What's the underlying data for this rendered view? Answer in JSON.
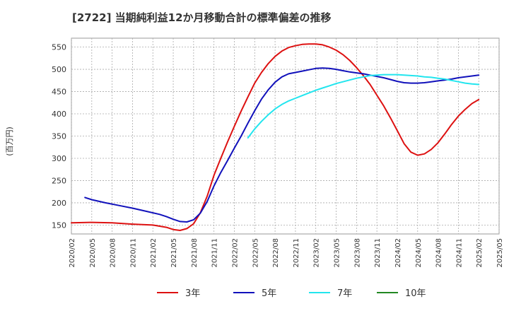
{
  "chart_data": {
    "type": "line",
    "title": "[2722]  当期純利益12か月移動合計の標準偏差の推移",
    "ylabel": "(百万円)",
    "ylim": [
      130,
      570
    ],
    "yticks": [
      150,
      200,
      250,
      300,
      350,
      400,
      450,
      500,
      550
    ],
    "xticks": [
      "2020/02",
      "2020/05",
      "2020/08",
      "2020/11",
      "2021/02",
      "2021/05",
      "2021/08",
      "2021/11",
      "2022/02",
      "2022/05",
      "2022/08",
      "2022/11",
      "2023/02",
      "2023/05",
      "2023/08",
      "2023/11",
      "2024/02",
      "2024/05",
      "2024/08",
      "2024/11",
      "2025/02",
      "2025/05"
    ],
    "grid": true,
    "legend_position": "bottom",
    "series": [
      {
        "name": "3年",
        "color": "#dd1111",
        "points": [
          [
            "2020/02",
            155
          ],
          [
            "2020/05",
            156
          ],
          [
            "2020/08",
            155
          ],
          [
            "2020/11",
            152
          ],
          [
            "2021/02",
            150
          ],
          [
            "2021/04",
            145
          ],
          [
            "2021/05",
            140
          ],
          [
            "2021/06",
            138
          ],
          [
            "2021/07",
            142
          ],
          [
            "2021/08",
            153
          ],
          [
            "2021/09",
            178
          ],
          [
            "2021/10",
            215
          ],
          [
            "2021/11",
            262
          ],
          [
            "2021/12",
            300
          ],
          [
            "2022/01",
            337
          ],
          [
            "2022/02",
            372
          ],
          [
            "2022/03",
            406
          ],
          [
            "2022/04",
            438
          ],
          [
            "2022/05",
            469
          ],
          [
            "2022/06",
            493
          ],
          [
            "2022/07",
            513
          ],
          [
            "2022/08",
            529
          ],
          [
            "2022/09",
            541
          ],
          [
            "2022/10",
            549
          ],
          [
            "2022/11",
            553
          ],
          [
            "2022/12",
            556
          ],
          [
            "2023/01",
            557
          ],
          [
            "2023/02",
            557
          ],
          [
            "2023/03",
            555
          ],
          [
            "2023/04",
            550
          ],
          [
            "2023/05",
            543
          ],
          [
            "2023/06",
            533
          ],
          [
            "2023/07",
            520
          ],
          [
            "2023/08",
            504
          ],
          [
            "2023/09",
            486
          ],
          [
            "2023/10",
            466
          ],
          [
            "2023/11",
            442
          ],
          [
            "2023/12",
            418
          ],
          [
            "2024/01",
            391
          ],
          [
            "2024/02",
            362
          ],
          [
            "2024/03",
            333
          ],
          [
            "2024/04",
            314
          ],
          [
            "2024/05",
            307
          ],
          [
            "2024/06",
            310
          ],
          [
            "2024/07",
            320
          ],
          [
            "2024/08",
            335
          ],
          [
            "2024/09",
            355
          ],
          [
            "2024/10",
            376
          ],
          [
            "2024/11",
            395
          ],
          [
            "2024/12",
            410
          ],
          [
            "2025/01",
            423
          ],
          [
            "2025/02",
            432
          ]
        ]
      },
      {
        "name": "5年",
        "color": "#1111bb",
        "points": [
          [
            "2020/04",
            212
          ],
          [
            "2020/05",
            207
          ],
          [
            "2020/07",
            200
          ],
          [
            "2020/09",
            194
          ],
          [
            "2020/11",
            188
          ],
          [
            "2021/01",
            181
          ],
          [
            "2021/03",
            174
          ],
          [
            "2021/04",
            169
          ],
          [
            "2021/05",
            163
          ],
          [
            "2021/06",
            158
          ],
          [
            "2021/07",
            157
          ],
          [
            "2021/08",
            162
          ],
          [
            "2021/09",
            177
          ],
          [
            "2021/10",
            203
          ],
          [
            "2021/11",
            238
          ],
          [
            "2021/12",
            268
          ],
          [
            "2022/01",
            295
          ],
          [
            "2022/02",
            323
          ],
          [
            "2022/03",
            350
          ],
          [
            "2022/04",
            379
          ],
          [
            "2022/05",
            407
          ],
          [
            "2022/06",
            433
          ],
          [
            "2022/07",
            454
          ],
          [
            "2022/08",
            471
          ],
          [
            "2022/09",
            483
          ],
          [
            "2022/10",
            490
          ],
          [
            "2022/11",
            493
          ],
          [
            "2022/12",
            496
          ],
          [
            "2023/01",
            499
          ],
          [
            "2023/02",
            502
          ],
          [
            "2023/03",
            503
          ],
          [
            "2023/04",
            502
          ],
          [
            "2023/05",
            500
          ],
          [
            "2023/06",
            497
          ],
          [
            "2023/07",
            494
          ],
          [
            "2023/08",
            492
          ],
          [
            "2023/09",
            490
          ],
          [
            "2023/10",
            487
          ],
          [
            "2023/11",
            484
          ],
          [
            "2023/12",
            481
          ],
          [
            "2024/01",
            477
          ],
          [
            "2024/02",
            473
          ],
          [
            "2024/03",
            470
          ],
          [
            "2024/04",
            469
          ],
          [
            "2024/05",
            469
          ],
          [
            "2024/06",
            470
          ],
          [
            "2024/07",
            472
          ],
          [
            "2024/08",
            474
          ],
          [
            "2024/09",
            476
          ],
          [
            "2024/10",
            478
          ],
          [
            "2024/11",
            481
          ],
          [
            "2024/12",
            483
          ],
          [
            "2025/01",
            485
          ],
          [
            "2025/02",
            487
          ]
        ]
      },
      {
        "name": "7年",
        "color": "#22e5ee",
        "points": [
          [
            "2022/04",
            346
          ],
          [
            "2022/05",
            366
          ],
          [
            "2022/06",
            383
          ],
          [
            "2022/07",
            398
          ],
          [
            "2022/08",
            411
          ],
          [
            "2022/09",
            421
          ],
          [
            "2022/10",
            429
          ],
          [
            "2022/11",
            435
          ],
          [
            "2022/12",
            441
          ],
          [
            "2023/01",
            447
          ],
          [
            "2023/02",
            453
          ],
          [
            "2023/03",
            458
          ],
          [
            "2023/04",
            463
          ],
          [
            "2023/05",
            468
          ],
          [
            "2023/06",
            472
          ],
          [
            "2023/07",
            476
          ],
          [
            "2023/08",
            480
          ],
          [
            "2023/09",
            483
          ],
          [
            "2023/10",
            486
          ],
          [
            "2023/11",
            487
          ],
          [
            "2023/12",
            488
          ],
          [
            "2024/01",
            488
          ],
          [
            "2024/02",
            488
          ],
          [
            "2024/03",
            487
          ],
          [
            "2024/04",
            486
          ],
          [
            "2024/05",
            485
          ],
          [
            "2024/06",
            483
          ],
          [
            "2024/07",
            482
          ],
          [
            "2024/08",
            480
          ],
          [
            "2024/09",
            478
          ],
          [
            "2024/10",
            475
          ],
          [
            "2024/11",
            472
          ],
          [
            "2024/12",
            469
          ],
          [
            "2025/01",
            467
          ],
          [
            "2025/02",
            466
          ]
        ]
      },
      {
        "name": "10年",
        "color": "#228822",
        "points": []
      }
    ]
  }
}
